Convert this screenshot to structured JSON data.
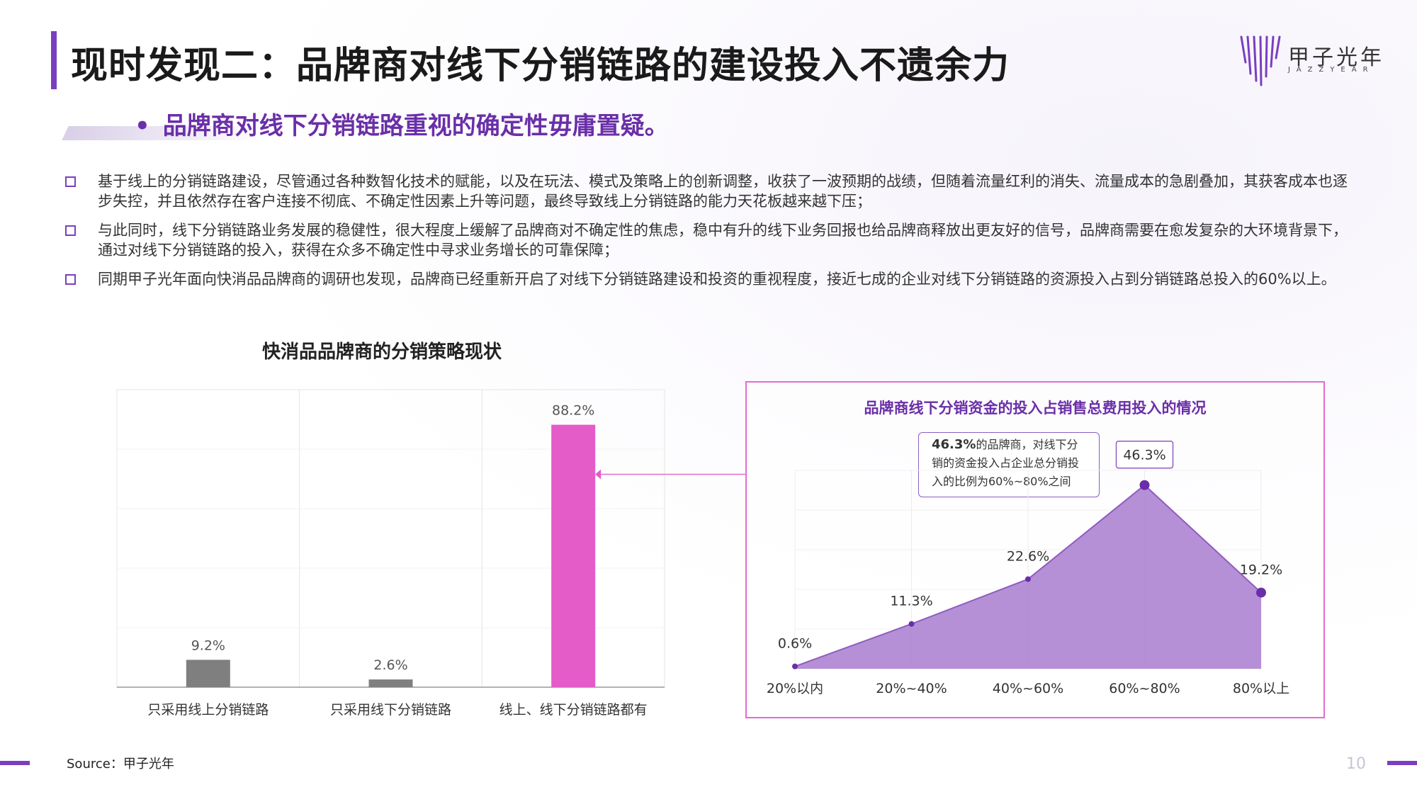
{
  "header": {
    "title": "现时发现二：品牌商对线下分销链路的建设投入不遗余力",
    "subtitle": "品牌商对线下分销链路重视的确定性毋庸置疑。",
    "logo_text": "甲子光年",
    "logo_sub": "JAZZYEAR"
  },
  "bullets": [
    "基于线上的分销链路建设，尽管通过各种数智化技术的赋能，以及在玩法、模式及策略上的创新调整，收获了一波预期的战绩，但随着流量红利的消失、流量成本的急剧叠加，其获客成本也逐步失控，并且依然存在客户连接不彻底、不确定性因素上升等问题，最终导致线上分销链路的能力天花板越来越下压；",
    "与此同时，线下分销链路业务发展的稳健性，很大程度上缓解了品牌商对不确定性的焦虑，稳中有升的线下业务回报也给品牌商释放出更友好的信号，品牌商需要在愈发复杂的大环境背景下，通过对线下分销链路的投入，获得在众多不确定性中寻求业务增长的可靠保障；",
    "同期甲子光年面向快消品品牌商的调研也发现，品牌商已经重新开启了对线下分销链路建设和投资的重视程度，接近七成的企业对线下分销链路的资源投入占到分销链路总投入的60%以上。"
  ],
  "chart_data": [
    {
      "type": "bar",
      "title": "快消品品牌商的分销策略现状",
      "categories": [
        "只采用线上分销链路",
        "只采用线下分销链路",
        "线上、线下分销链路都有"
      ],
      "values": [
        9.2,
        2.6,
        88.2
      ],
      "value_labels": [
        "9.2%",
        "2.6%",
        "88.2%"
      ],
      "colors": [
        "#7f7f7f",
        "#7f7f7f",
        "#e35cc8"
      ],
      "ylim": [
        0,
        100
      ],
      "grid": true
    },
    {
      "type": "area",
      "title": "品牌商线下分销资金的投入占销售总费用投入的情况",
      "categories": [
        "20%以内",
        "20%~40%",
        "40%~60%",
        "60%~80%",
        "80%以上"
      ],
      "values": [
        0.6,
        11.3,
        22.6,
        46.3,
        19.2
      ],
      "value_labels": [
        "0.6%",
        "11.3%",
        "22.6%",
        "46.3%",
        "19.2%"
      ],
      "color": "#a97cd0",
      "ylim": [
        0,
        50
      ],
      "grid": true,
      "annotation": {
        "highlight": "46.3%",
        "text_after": "的品牌商，对线下分",
        "line2": "销的资金投入占企业总分销投",
        "line3": "入的比例为60%~80%之间"
      }
    }
  ],
  "footer": {
    "source": "Source：甲子光年",
    "page": "10"
  }
}
